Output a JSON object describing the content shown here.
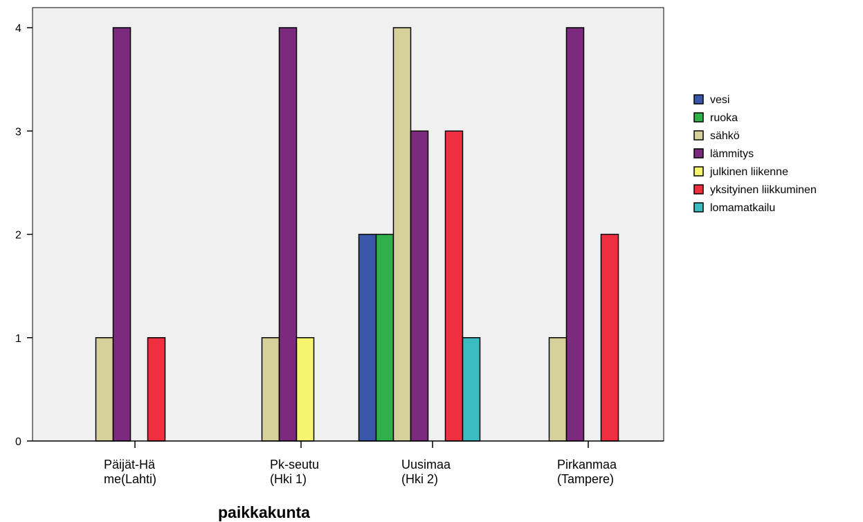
{
  "chart_data": {
    "type": "bar",
    "xlabel": "paikkakunta",
    "ylabel": "",
    "ylim": [
      0,
      4
    ],
    "yticks": [
      "0",
      "1",
      "2",
      "3",
      "4"
    ],
    "grid": false,
    "legend_position": "right",
    "categories": [
      [
        "Päijät-Hä",
        "me(Lahti)"
      ],
      [
        "Pk-seutu",
        "(Hki 1)"
      ],
      [
        "Uusimaa",
        "(Hki 2)"
      ],
      [
        "Pirkanmaa",
        "(Tampere)"
      ]
    ],
    "series": [
      {
        "name": "vesi",
        "color": "#3a56a8",
        "values": [
          0,
          0,
          2,
          0
        ]
      },
      {
        "name": "ruoka",
        "color": "#2fb04a",
        "values": [
          0,
          0,
          2,
          0
        ]
      },
      {
        "name": "sähkö",
        "color": "#d6d09b",
        "values": [
          1,
          1,
          4,
          1
        ]
      },
      {
        "name": "lämmitys",
        "color": "#7b2a7e",
        "values": [
          4,
          4,
          3,
          4
        ]
      },
      {
        "name": "julkinen liikenne",
        "color": "#f7f56e",
        "values": [
          0,
          1,
          0,
          0
        ]
      },
      {
        "name": "yksityinen liikkuminen",
        "color": "#ee3040",
        "values": [
          1,
          0,
          3,
          2
        ]
      },
      {
        "name": "lomamatkailu",
        "color": "#3bbcc0",
        "values": [
          0,
          0,
          1,
          0
        ]
      }
    ]
  }
}
